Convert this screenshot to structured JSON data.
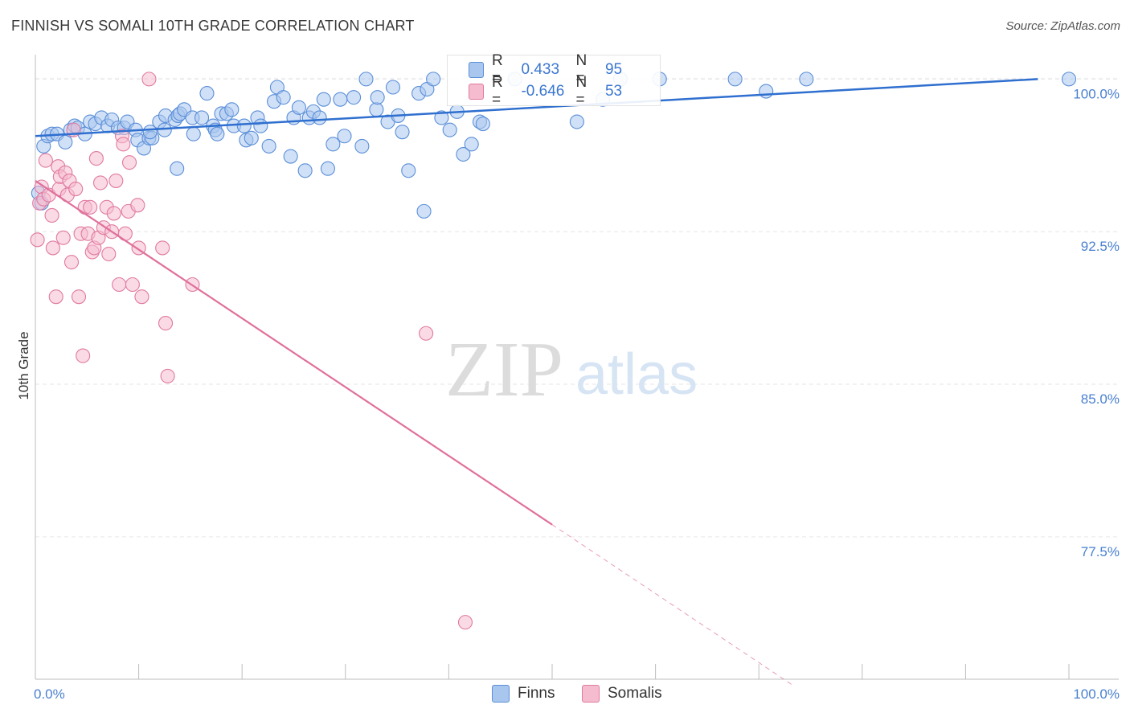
{
  "header": {
    "title": "FINNISH VS SOMALI 10TH GRADE CORRELATION CHART",
    "source": "Source: ZipAtlas.com"
  },
  "watermark": {
    "zip": "ZIP",
    "atlas": "atlas"
  },
  "legend": {
    "r_label": "R =",
    "n_label": "N =",
    "series": [
      {
        "name": "Finns",
        "r": "0.433",
        "n": "95",
        "fill": "#a9c6ee",
        "stroke": "#5b8fd8"
      },
      {
        "name": "Somalis",
        "r": "-0.646",
        "n": "53",
        "fill": "#f5bcd0",
        "stroke": "#e07aa0"
      }
    ]
  },
  "colors": {
    "finns_line": "#2f6fcf",
    "somalis_line": "#e0709a",
    "tick_label": "#4a80d0",
    "grid": "#e6e6e6"
  },
  "chart_data": {
    "type": "scatter",
    "title": "FINNISH VS SOMALI 10TH GRADE CORRELATION CHART",
    "xlabel": "",
    "ylabel": "10th Grade",
    "xlim": [
      0,
      100
    ],
    "ylim": [
      70.5,
      101.2
    ],
    "x_tick_labels": [
      "0.0%",
      "100.0%"
    ],
    "y_ticks": [
      {
        "value": 100.0,
        "label": "100.0%"
      },
      {
        "value": 92.5,
        "label": "92.5%"
      },
      {
        "value": 85.0,
        "label": "85.0%"
      },
      {
        "value": 77.5,
        "label": "77.5%"
      }
    ],
    "series": [
      {
        "name": "Finns",
        "trend": {
          "x": [
            0,
            97
          ],
          "y": [
            97.2,
            100.0
          ],
          "dashed_from": null
        },
        "points": [
          [
            0.3,
            94.4
          ],
          [
            0.6,
            93.9
          ],
          [
            0.8,
            96.7
          ],
          [
            1.2,
            97.2
          ],
          [
            1.6,
            97.3
          ],
          [
            2.1,
            97.3
          ],
          [
            2.9,
            96.9
          ],
          [
            3.4,
            97.5
          ],
          [
            3.8,
            97.7
          ],
          [
            4.1,
            97.6
          ],
          [
            4.8,
            97.3
          ],
          [
            5.3,
            97.9
          ],
          [
            5.8,
            97.8
          ],
          [
            6.4,
            98.1
          ],
          [
            7.0,
            97.7
          ],
          [
            7.4,
            98.0
          ],
          [
            8.0,
            97.6
          ],
          [
            8.6,
            97.6
          ],
          [
            8.9,
            97.9
          ],
          [
            9.7,
            97.5
          ],
          [
            9.9,
            97.0
          ],
          [
            10.5,
            96.6
          ],
          [
            11.0,
            97.1
          ],
          [
            11.3,
            97.1
          ],
          [
            11.1,
            97.4
          ],
          [
            12.0,
            97.9
          ],
          [
            12.6,
            98.2
          ],
          [
            12.5,
            97.5
          ],
          [
            13.5,
            98.0
          ],
          [
            13.8,
            98.2
          ],
          [
            14.0,
            98.3
          ],
          [
            14.4,
            98.5
          ],
          [
            15.2,
            98.1
          ],
          [
            15.3,
            97.3
          ],
          [
            13.7,
            95.6
          ],
          [
            16.1,
            98.1
          ],
          [
            16.6,
            99.3
          ],
          [
            17.2,
            97.7
          ],
          [
            17.4,
            97.5
          ],
          [
            17.6,
            97.3
          ],
          [
            18.0,
            98.3
          ],
          [
            18.5,
            98.3
          ],
          [
            19.0,
            98.5
          ],
          [
            19.2,
            97.7
          ],
          [
            20.2,
            97.7
          ],
          [
            20.4,
            97.0
          ],
          [
            20.9,
            97.1
          ],
          [
            21.5,
            98.1
          ],
          [
            21.8,
            97.7
          ],
          [
            22.6,
            96.7
          ],
          [
            23.1,
            98.9
          ],
          [
            23.4,
            99.6
          ],
          [
            24.0,
            99.1
          ],
          [
            24.7,
            96.2
          ],
          [
            25.0,
            98.1
          ],
          [
            25.5,
            98.6
          ],
          [
            26.1,
            95.5
          ],
          [
            26.5,
            98.1
          ],
          [
            26.9,
            98.4
          ],
          [
            27.5,
            98.1
          ],
          [
            27.9,
            99.0
          ],
          [
            28.3,
            95.6
          ],
          [
            28.8,
            96.8
          ],
          [
            29.5,
            99.0
          ],
          [
            29.9,
            97.2
          ],
          [
            30.8,
            99.1
          ],
          [
            31.6,
            96.7
          ],
          [
            32.0,
            100.0
          ],
          [
            33.0,
            98.5
          ],
          [
            33.1,
            99.1
          ],
          [
            34.1,
            97.9
          ],
          [
            34.6,
            99.6
          ],
          [
            35.1,
            98.2
          ],
          [
            35.5,
            97.4
          ],
          [
            36.1,
            95.5
          ],
          [
            37.1,
            99.3
          ],
          [
            37.6,
            93.5
          ],
          [
            37.9,
            99.5
          ],
          [
            38.5,
            100.0
          ],
          [
            39.3,
            98.1
          ],
          [
            40.1,
            97.5
          ],
          [
            40.8,
            98.4
          ],
          [
            41.4,
            96.3
          ],
          [
            42.2,
            96.8
          ],
          [
            43.0,
            97.9
          ],
          [
            43.3,
            97.8
          ],
          [
            46.4,
            100.0
          ],
          [
            52.4,
            97.9
          ],
          [
            54.9,
            99.0
          ],
          [
            56.6,
            100.0
          ],
          [
            60.4,
            100.0
          ],
          [
            67.7,
            100.0
          ],
          [
            70.7,
            99.4
          ],
          [
            74.6,
            100.0
          ],
          [
            100.0,
            100.0
          ]
        ]
      },
      {
        "name": "Somalis",
        "trend": {
          "x": [
            0,
            50,
            73.3
          ],
          "y": [
            95.0,
            78.1,
            70.2
          ],
          "dashed_from": 50
        },
        "points": [
          [
            0.2,
            92.1
          ],
          [
            0.4,
            93.9
          ],
          [
            0.6,
            94.7
          ],
          [
            0.8,
            94.1
          ],
          [
            1.0,
            96.0
          ],
          [
            1.3,
            94.3
          ],
          [
            1.6,
            93.3
          ],
          [
            1.7,
            91.7
          ],
          [
            2.0,
            89.3
          ],
          [
            2.2,
            95.7
          ],
          [
            2.3,
            94.6
          ],
          [
            2.4,
            95.2
          ],
          [
            2.7,
            92.2
          ],
          [
            2.9,
            95.4
          ],
          [
            3.1,
            94.3
          ],
          [
            3.3,
            95.0
          ],
          [
            3.5,
            91.0
          ],
          [
            3.7,
            97.5
          ],
          [
            3.9,
            94.6
          ],
          [
            4.2,
            89.3
          ],
          [
            4.4,
            92.4
          ],
          [
            4.6,
            86.4
          ],
          [
            4.8,
            93.7
          ],
          [
            5.1,
            92.4
          ],
          [
            5.3,
            93.7
          ],
          [
            5.5,
            91.5
          ],
          [
            5.7,
            91.7
          ],
          [
            5.9,
            96.1
          ],
          [
            6.1,
            92.2
          ],
          [
            6.3,
            94.9
          ],
          [
            6.6,
            92.7
          ],
          [
            6.9,
            93.7
          ],
          [
            7.1,
            91.4
          ],
          [
            7.4,
            92.5
          ],
          [
            7.6,
            93.4
          ],
          [
            7.8,
            95.0
          ],
          [
            8.1,
            89.9
          ],
          [
            8.4,
            97.2
          ],
          [
            8.5,
            96.8
          ],
          [
            8.7,
            92.4
          ],
          [
            9.0,
            93.5
          ],
          [
            9.1,
            95.9
          ],
          [
            9.4,
            89.9
          ],
          [
            9.9,
            93.8
          ],
          [
            10.0,
            91.7
          ],
          [
            10.3,
            89.3
          ],
          [
            11.0,
            100.0
          ],
          [
            12.3,
            91.7
          ],
          [
            12.6,
            88.0
          ],
          [
            12.8,
            85.4
          ],
          [
            15.2,
            89.9
          ],
          [
            37.8,
            87.5
          ],
          [
            41.6,
            73.3
          ]
        ]
      }
    ]
  }
}
